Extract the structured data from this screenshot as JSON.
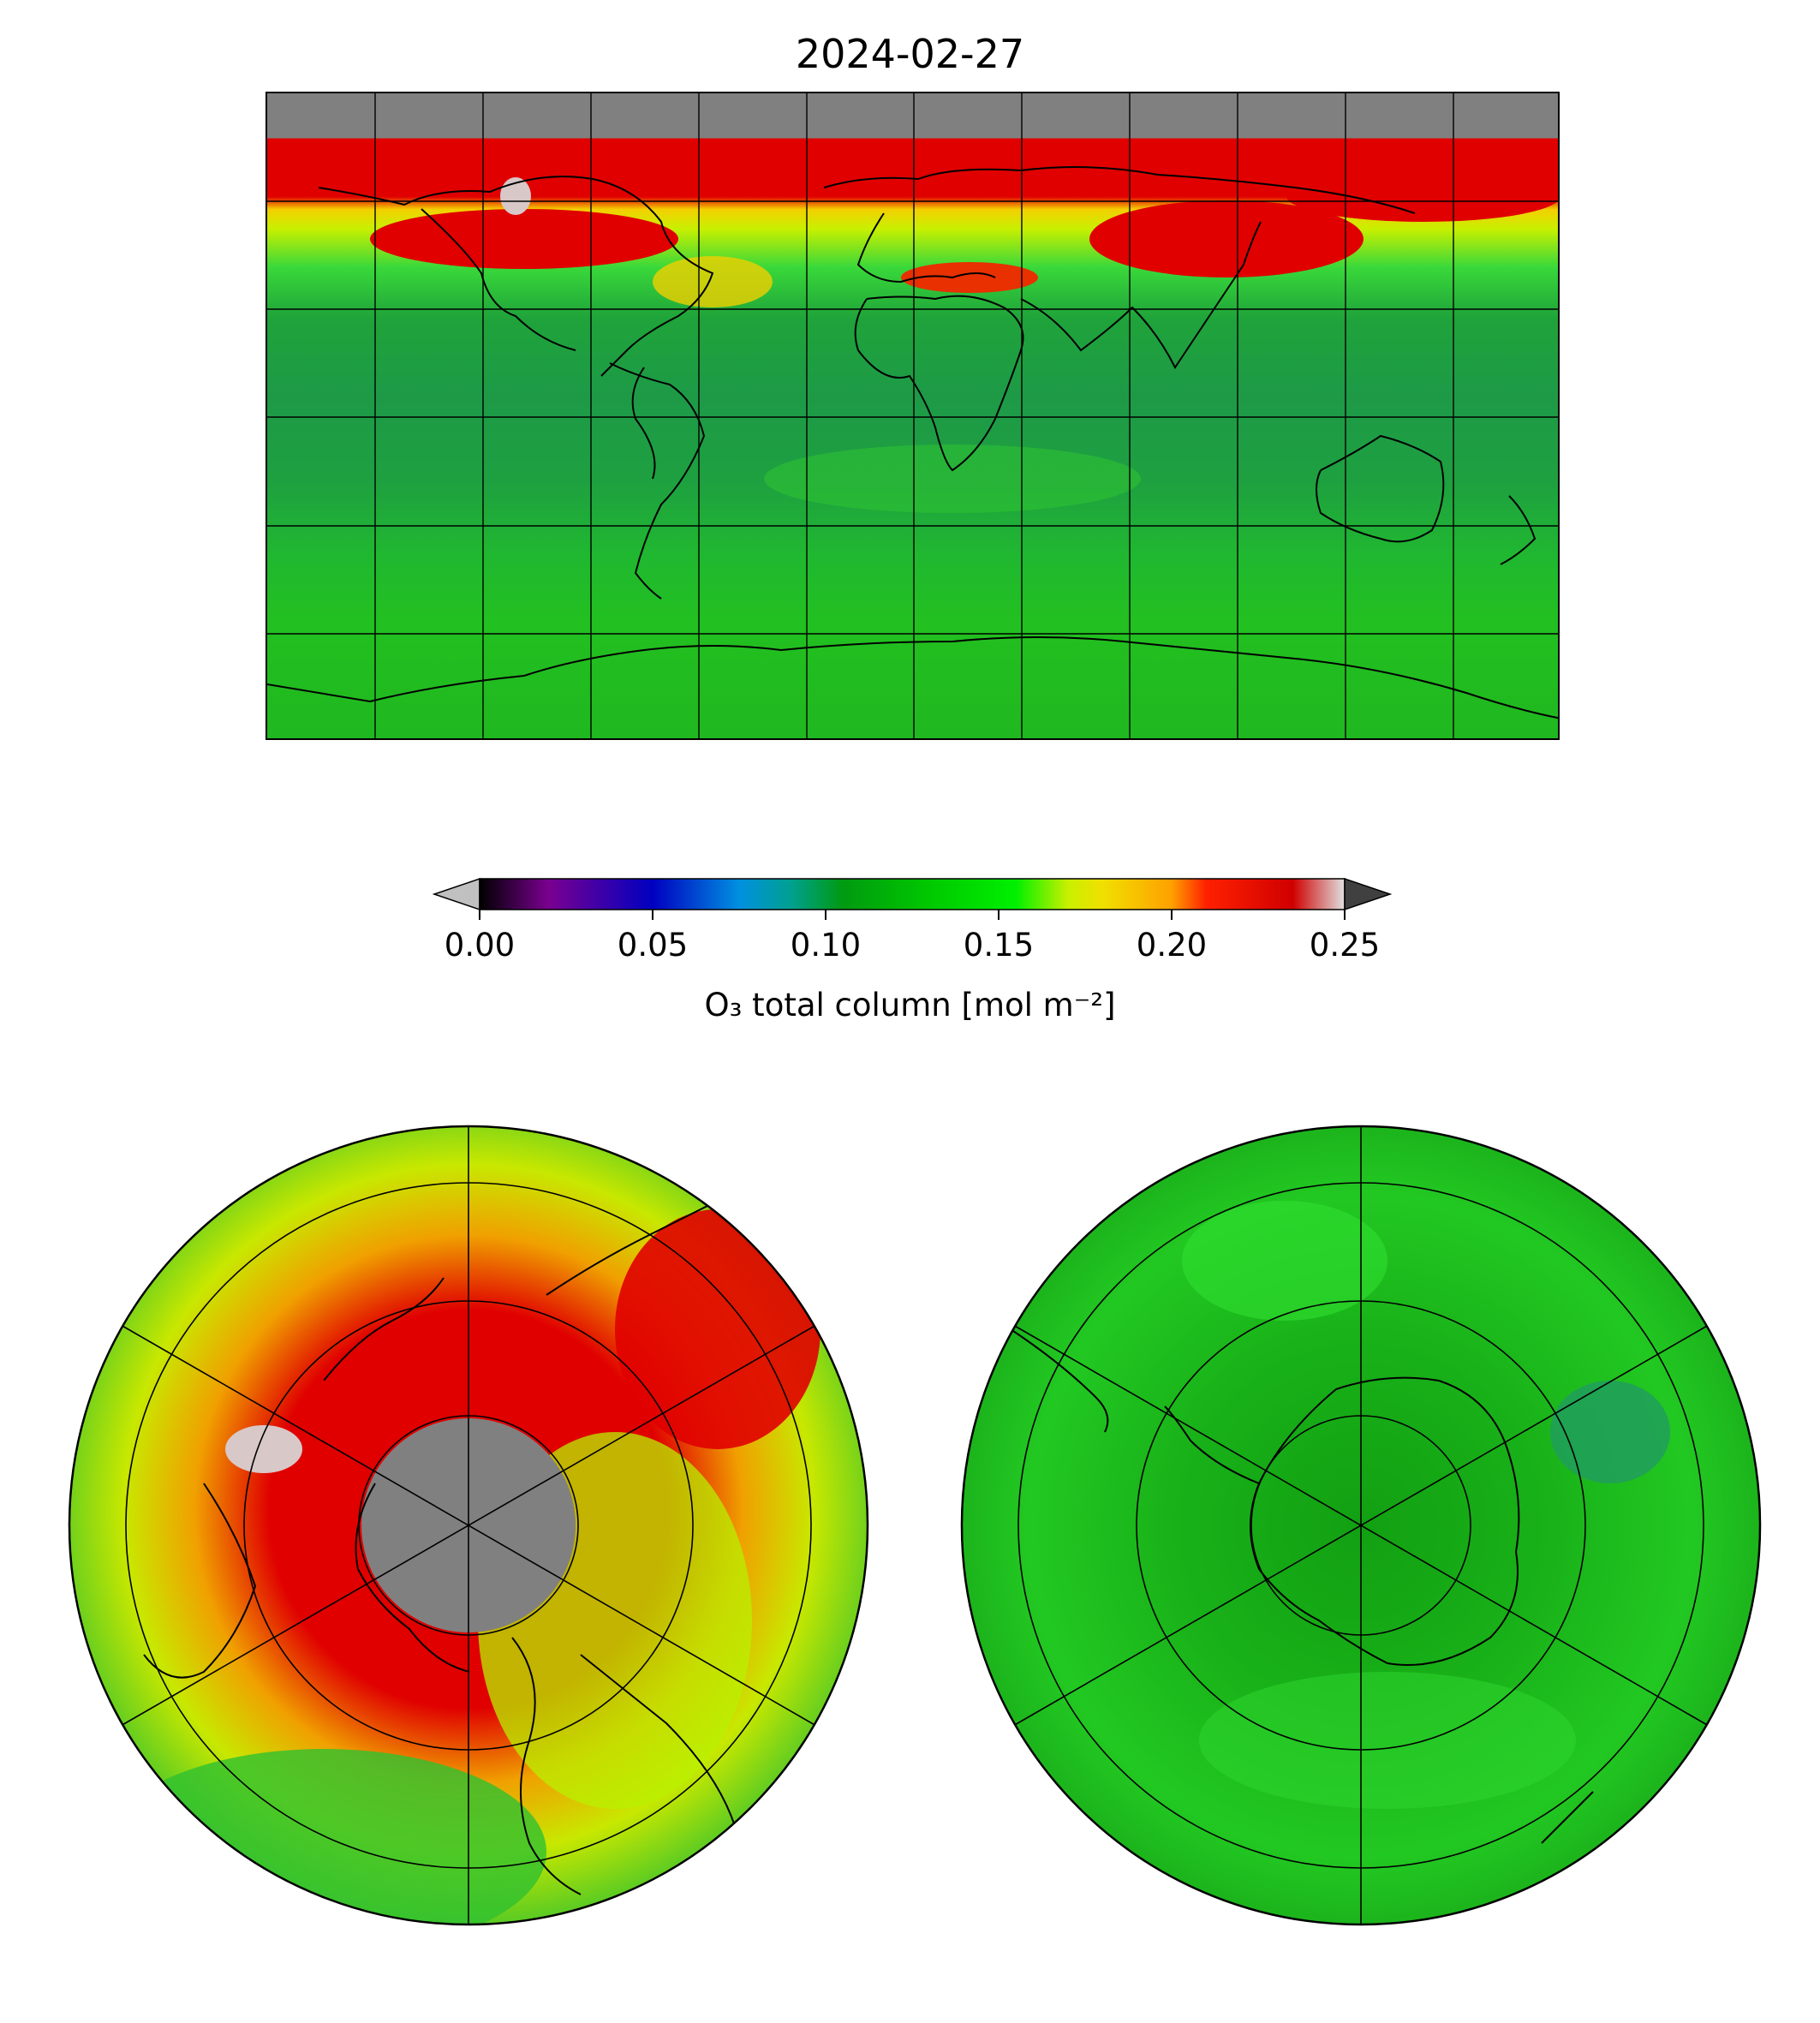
{
  "title": "2024-02-27",
  "colorbar": {
    "label": "O₃ total column [mol m⁻²]",
    "ticks": [
      "0.00",
      "0.05",
      "0.10",
      "0.15",
      "0.20",
      "0.25"
    ],
    "min": 0.0,
    "max": 0.25,
    "extend": "both",
    "colormap_stops": [
      "#000000",
      "#7a0090",
      "#0000c0",
      "#0090e0",
      "#00a090",
      "#009a10",
      "#00c800",
      "#00f000",
      "#c8f000",
      "#f0e000",
      "#ffa000",
      "#ff2000",
      "#d00000",
      "#e0e0e0"
    ],
    "under_color": "#c0c0c0",
    "over_color": "#404040"
  },
  "maps": {
    "global": {
      "projection": "plate-carree",
      "no_data_color": "#808080"
    },
    "north_polar": {
      "projection": "north-polar-stereographic",
      "no_data_color": "#808080"
    },
    "south_polar": {
      "projection": "south-polar-stereographic"
    }
  }
}
